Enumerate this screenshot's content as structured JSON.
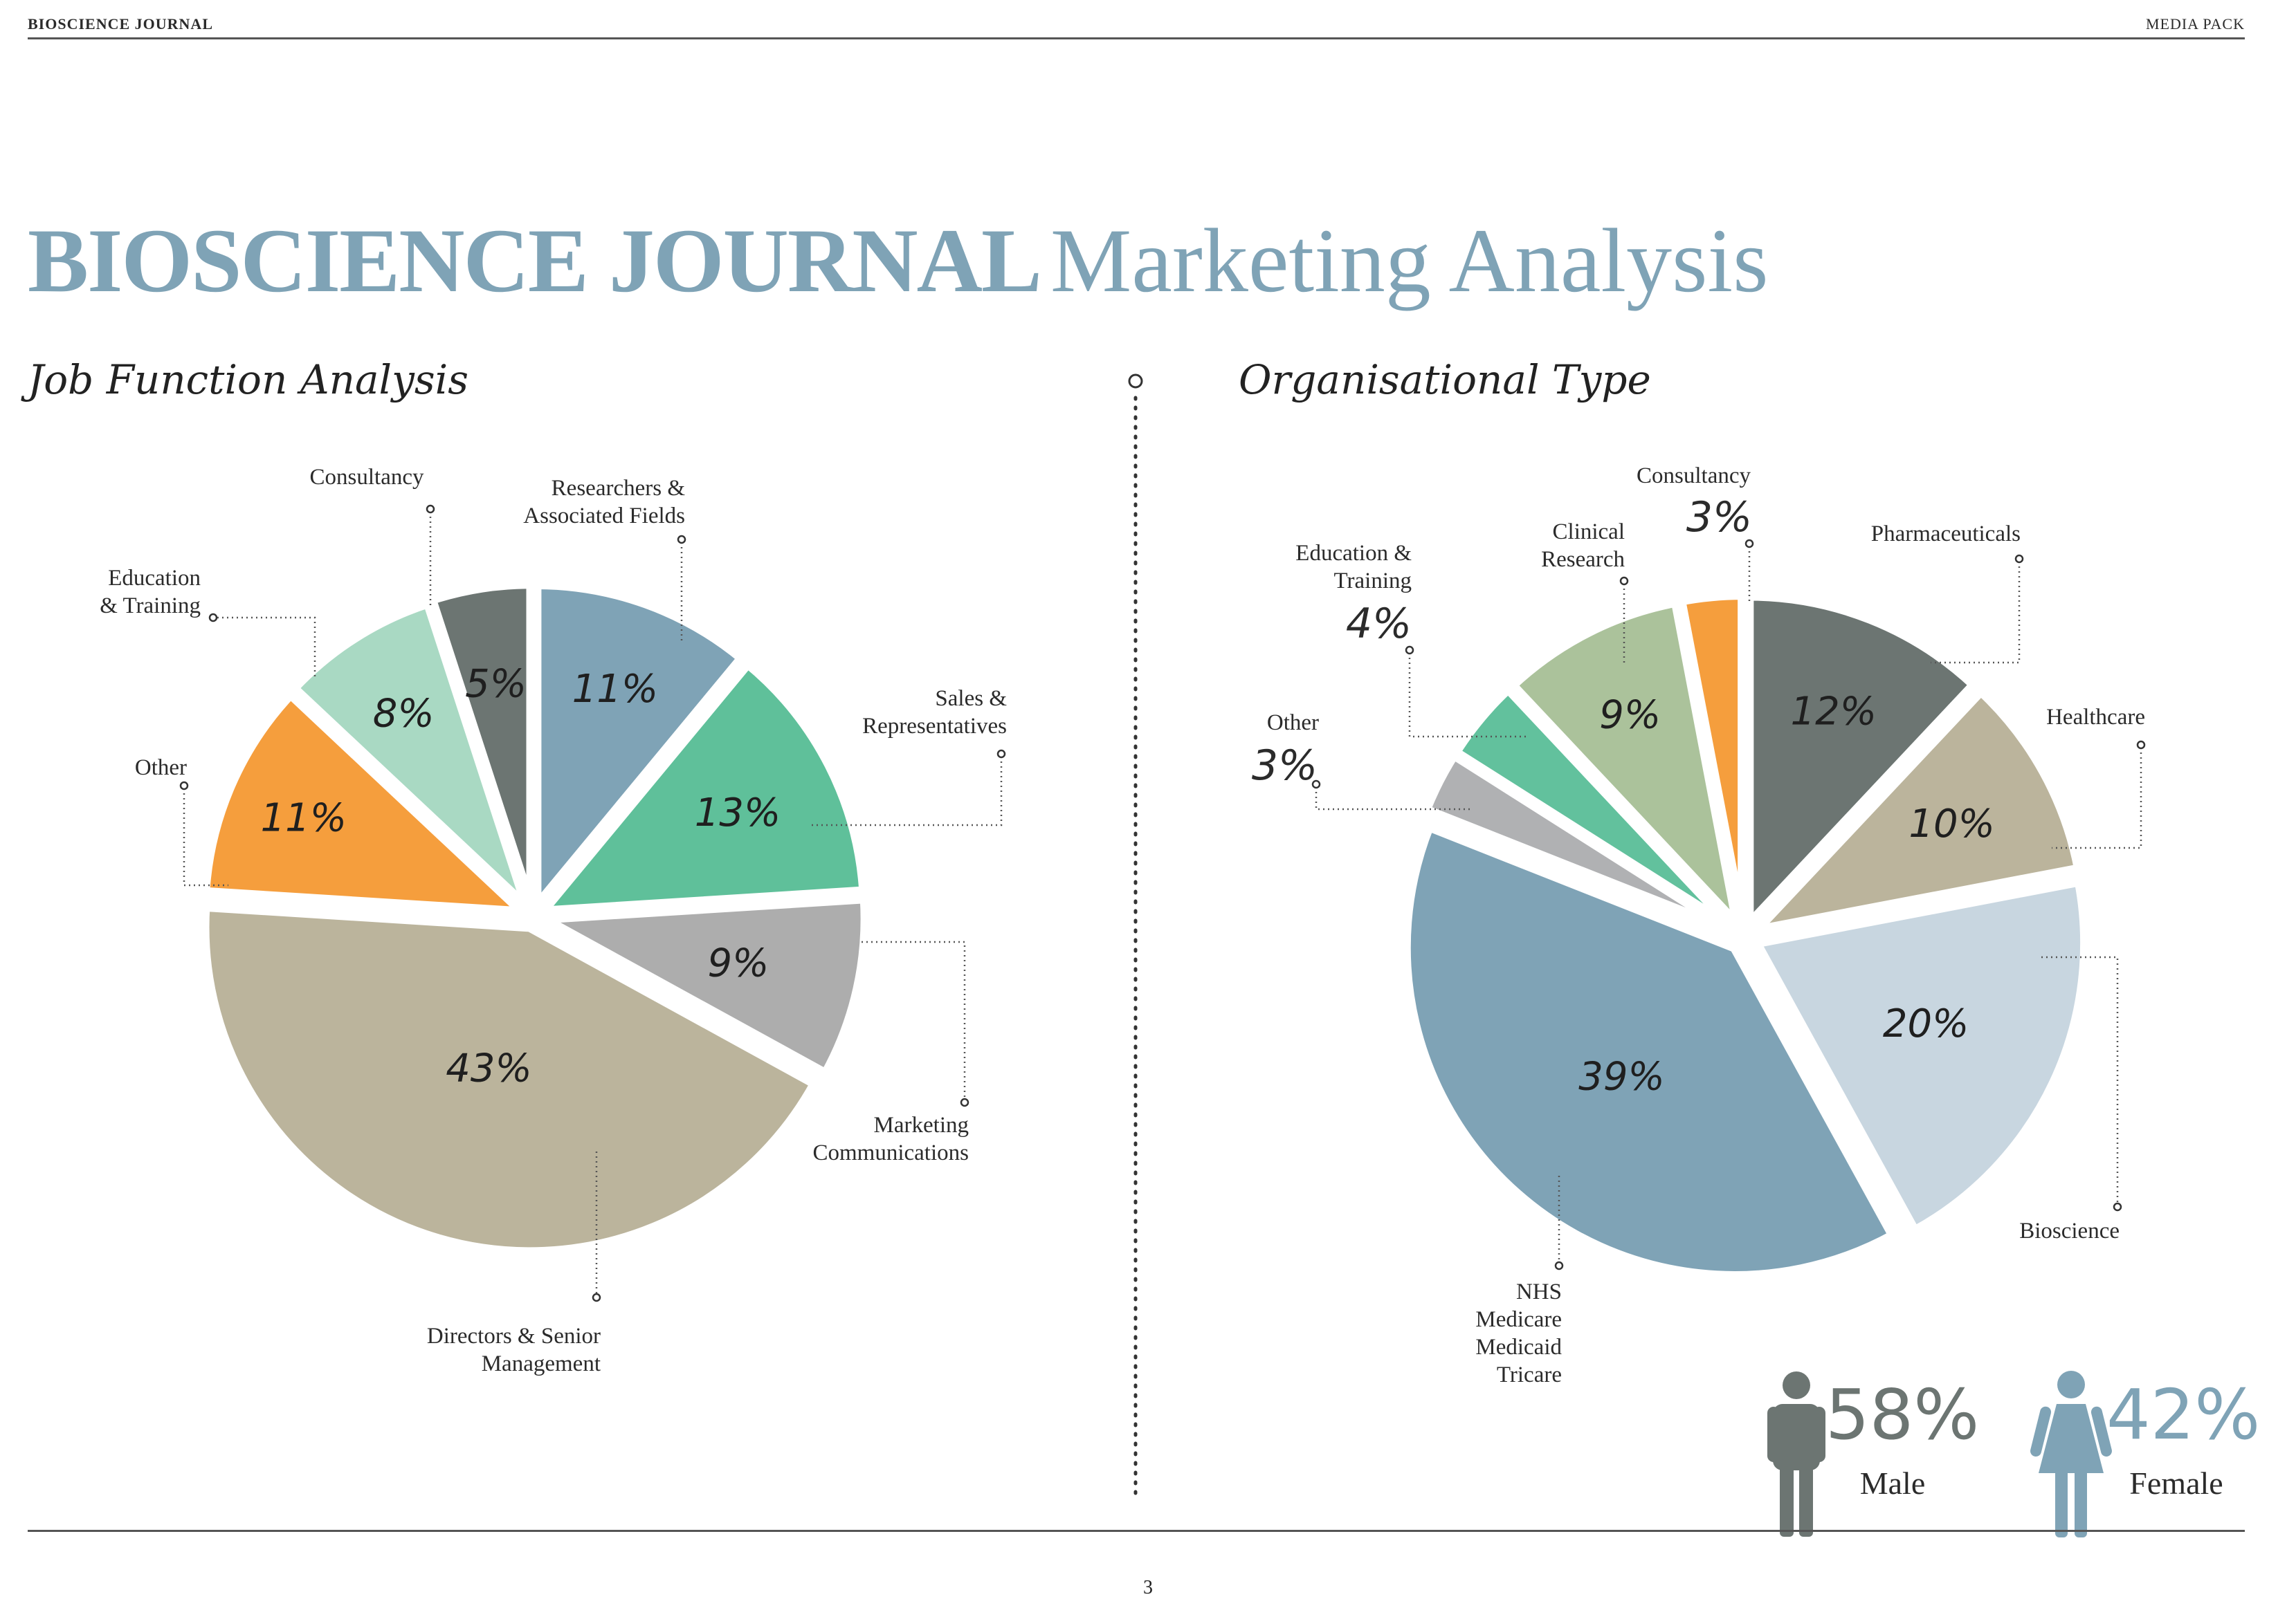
{
  "header": {
    "left": "BIOSCIENCE JOURNAL",
    "right": "MEDIA PACK"
  },
  "title": {
    "strong": "BIOSCIENCE JOURNAL",
    "light": "Marketing Analysis"
  },
  "page_number": "3",
  "colors": {
    "title": "#7fa3b6",
    "slate": "#6c7572",
    "blue": "#7fa3b6",
    "green": "#5fc09a",
    "gray": "#adadad",
    "beige": "#bbb49c",
    "orange": "#f59e3d",
    "mint": "#a9d9c3",
    "sage": "#abc29b",
    "light_blue": "#c8d6e0",
    "light_gray": "#b0b1b3",
    "teal": "#62c19d",
    "male": "#6c7572",
    "female": "#7fa3b6"
  },
  "chart_data": [
    {
      "type": "pie",
      "title": "Job Function Analysis",
      "slices": [
        {
          "label": "Researchers & Associated Fields",
          "value": 11,
          "display": "11%"
        },
        {
          "label": "Sales & Representatives",
          "value": 13,
          "display": "13%"
        },
        {
          "label": "Marketing Communications",
          "value": 9,
          "display": "9%"
        },
        {
          "label": "Directors & Senior Management",
          "value": 43,
          "display": "43%"
        },
        {
          "label": "Other",
          "value": 11,
          "display": "11%"
        },
        {
          "label": "Education & Training",
          "value": 8,
          "display": "8%"
        },
        {
          "label": "Consultancy",
          "value": 5,
          "display": "5%"
        }
      ]
    },
    {
      "type": "pie",
      "title": "Organisational Type",
      "slices": [
        {
          "label": "Pharmaceuticals",
          "value": 12,
          "display": "12%"
        },
        {
          "label": "Healthcare",
          "value": 10,
          "display": "10%"
        },
        {
          "label": "Bioscience",
          "value": 20,
          "display": "20%"
        },
        {
          "label": "NHS Medicare Medicaid Tricare",
          "value": 39,
          "display": "39%"
        },
        {
          "label": "Other",
          "value": 3,
          "display": "3%"
        },
        {
          "label": "Education & Training",
          "value": 4,
          "display": "4%"
        },
        {
          "label": "Clinical Research",
          "value": 9,
          "display": "9%"
        },
        {
          "label": "Consultancy",
          "value": 3,
          "display": "3%"
        }
      ]
    }
  ],
  "job_function": {
    "labels": {
      "consultancy": "Consultancy",
      "researchers": [
        "Researchers &",
        "Associated Fields"
      ],
      "education": [
        "Education",
        "& Training"
      ],
      "sales": [
        "Sales &",
        "Representatives"
      ],
      "other": "Other",
      "marketing": [
        "Marketing",
        "Communications"
      ],
      "directors": [
        "Directors & Senior",
        "Management"
      ]
    }
  },
  "org_type": {
    "labels": {
      "consultancy": "Consultancy",
      "clinical": [
        "Clinical",
        "Research"
      ],
      "education": [
        "Education &",
        "Training"
      ],
      "pharma": "Pharmaceuticals",
      "healthcare": "Healthcare",
      "other": "Other",
      "bioscience": "Bioscience",
      "nhs": [
        "NHS",
        "Medicare",
        "Medicaid",
        "Tricare"
      ]
    }
  },
  "gender": {
    "male": {
      "value": 58,
      "display": "58%",
      "label": "Male"
    },
    "female": {
      "value": 42,
      "display": "42%",
      "label": "Female"
    }
  }
}
